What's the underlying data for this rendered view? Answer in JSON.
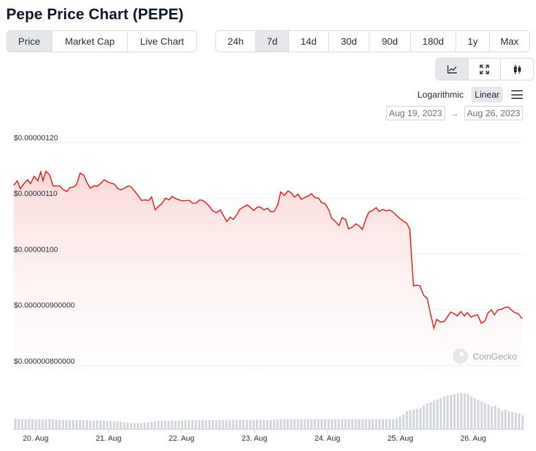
{
  "title": "Pepe Price Chart (PEPE)",
  "metric_tabs": [
    {
      "label": "Price",
      "active": true
    },
    {
      "label": "Market Cap",
      "active": false
    },
    {
      "label": "Live Chart",
      "active": false
    }
  ],
  "range_tabs": [
    {
      "label": "24h",
      "active": false
    },
    {
      "label": "7d",
      "active": true
    },
    {
      "label": "14d",
      "active": false
    },
    {
      "label": "30d",
      "active": false
    },
    {
      "label": "90d",
      "active": false
    },
    {
      "label": "180d",
      "active": false
    },
    {
      "label": "1y",
      "active": false
    },
    {
      "label": "Max",
      "active": false
    }
  ],
  "chart_type_icons": [
    {
      "name": "line-chart-icon",
      "active": true
    },
    {
      "name": "expand-icon",
      "active": false
    },
    {
      "name": "candlestick-icon",
      "active": false
    }
  ],
  "scale": {
    "log_label": "Logarithmic",
    "linear_label": "Linear",
    "selected": "Linear"
  },
  "dates": {
    "from": "Aug 19, 2023",
    "to": "Aug 26, 2023"
  },
  "watermark": "CoinGecko",
  "colors": {
    "line": "#dc2626",
    "fill_top": "#fbd5d5",
    "volume": "#d1d5db"
  },
  "chart_data": {
    "type": "line",
    "title": "",
    "xlabel": "",
    "ylabel": "",
    "y_ticks": [
      {
        "value": 1.2e-06,
        "label": "$0.00000120"
      },
      {
        "value": 1.1e-06,
        "label": "$0.00000110"
      },
      {
        "value": 1e-06,
        "label": "$0.00000100"
      },
      {
        "value": 9e-07,
        "label": "$0.000000900000"
      },
      {
        "value": 8e-07,
        "label": "$0.000000800000"
      }
    ],
    "ylim": [
      7.9e-07,
      1.2e-06
    ],
    "x_ticks": [
      {
        "t": 0.3,
        "label": "20. Aug"
      },
      {
        "t": 1.3,
        "label": "21. Aug"
      },
      {
        "t": 2.3,
        "label": "22. Aug"
      },
      {
        "t": 3.3,
        "label": "23. Aug"
      },
      {
        "t": 4.3,
        "label": "24. Aug"
      },
      {
        "t": 5.3,
        "label": "25. Aug"
      },
      {
        "t": 6.3,
        "label": "26. Aug"
      }
    ],
    "xlim": [
      0,
      7
    ],
    "grid": true,
    "series": [
      {
        "values": [
          [
            0.0,
            1.123
          ],
          [
            0.05,
            1.131
          ],
          [
            0.09,
            1.117
          ],
          [
            0.14,
            1.126
          ],
          [
            0.19,
            1.133
          ],
          [
            0.23,
            1.126
          ],
          [
            0.28,
            1.139
          ],
          [
            0.33,
            1.131
          ],
          [
            0.37,
            1.147
          ],
          [
            0.4,
            1.131
          ],
          [
            0.44,
            1.148
          ],
          [
            0.49,
            1.142
          ],
          [
            0.54,
            1.122
          ],
          [
            0.63,
            1.122
          ],
          [
            0.68,
            1.115
          ],
          [
            0.73,
            1.112
          ],
          [
            0.77,
            1.119
          ],
          [
            0.82,
            1.12
          ],
          [
            0.86,
            1.124
          ],
          [
            0.91,
            1.145
          ],
          [
            0.96,
            1.141
          ],
          [
            1.0,
            1.129
          ],
          [
            1.05,
            1.118
          ],
          [
            1.1,
            1.122
          ],
          [
            1.14,
            1.121
          ],
          [
            1.19,
            1.126
          ],
          [
            1.24,
            1.133
          ],
          [
            1.29,
            1.129
          ],
          [
            1.33,
            1.127
          ],
          [
            1.38,
            1.125
          ],
          [
            1.43,
            1.117
          ],
          [
            1.47,
            1.115
          ],
          [
            1.52,
            1.118
          ],
          [
            1.57,
            1.122
          ],
          [
            1.61,
            1.12
          ],
          [
            1.66,
            1.112
          ],
          [
            1.71,
            1.104
          ],
          [
            1.75,
            1.096
          ],
          [
            1.8,
            1.097
          ],
          [
            1.85,
            1.096
          ],
          [
            1.89,
            1.102
          ],
          [
            1.94,
            1.079
          ],
          [
            1.99,
            1.086
          ],
          [
            2.03,
            1.09
          ],
          [
            2.08,
            1.1
          ],
          [
            2.13,
            1.097
          ],
          [
            2.17,
            1.103
          ],
          [
            2.22,
            1.099
          ],
          [
            2.27,
            1.097
          ],
          [
            2.31,
            1.095
          ],
          [
            2.36,
            1.096
          ],
          [
            2.41,
            1.096
          ],
          [
            2.45,
            1.091
          ],
          [
            2.5,
            1.091
          ],
          [
            2.55,
            1.097
          ],
          [
            2.59,
            1.096
          ],
          [
            2.64,
            1.091
          ],
          [
            2.69,
            1.084
          ],
          [
            2.73,
            1.077
          ],
          [
            2.78,
            1.074
          ],
          [
            2.83,
            1.079
          ],
          [
            2.87,
            1.07
          ],
          [
            2.92,
            1.058
          ],
          [
            2.97,
            1.066
          ],
          [
            3.01,
            1.062
          ],
          [
            3.06,
            1.071
          ],
          [
            3.1,
            1.08
          ],
          [
            3.15,
            1.084
          ],
          [
            3.2,
            1.088
          ],
          [
            3.24,
            1.084
          ],
          [
            3.29,
            1.078
          ],
          [
            3.34,
            1.084
          ],
          [
            3.38,
            1.084
          ],
          [
            3.43,
            1.079
          ],
          [
            3.48,
            1.082
          ],
          [
            3.52,
            1.076
          ],
          [
            3.57,
            1.076
          ],
          [
            3.62,
            1.088
          ],
          [
            3.66,
            1.111
          ],
          [
            3.71,
            1.105
          ],
          [
            3.76,
            1.113
          ],
          [
            3.8,
            1.11
          ],
          [
            3.85,
            1.102
          ],
          [
            3.9,
            1.107
          ],
          [
            3.94,
            1.098
          ],
          [
            3.99,
            1.101
          ],
          [
            4.04,
            1.104
          ],
          [
            4.08,
            1.108
          ],
          [
            4.13,
            1.101
          ],
          [
            4.18,
            1.1
          ],
          [
            4.22,
            1.092
          ],
          [
            4.27,
            1.09
          ],
          [
            4.32,
            1.079
          ],
          [
            4.36,
            1.064
          ],
          [
            4.41,
            1.058
          ],
          [
            4.46,
            1.051
          ],
          [
            4.5,
            1.065
          ],
          [
            4.55,
            1.062
          ],
          [
            4.59,
            1.045
          ],
          [
            4.64,
            1.048
          ],
          [
            4.69,
            1.054
          ],
          [
            4.73,
            1.051
          ],
          [
            4.78,
            1.044
          ],
          [
            4.83,
            1.064
          ],
          [
            4.87,
            1.075
          ],
          [
            4.92,
            1.078
          ],
          [
            4.97,
            1.083
          ],
          [
            5.01,
            1.076
          ],
          [
            5.06,
            1.08
          ],
          [
            5.11,
            1.077
          ],
          [
            5.15,
            1.079
          ],
          [
            5.2,
            1.075
          ],
          [
            5.25,
            1.069
          ],
          [
            5.29,
            1.064
          ],
          [
            5.34,
            1.059
          ],
          [
            5.39,
            1.055
          ],
          [
            5.43,
            1.044
          ],
          [
            5.48,
            0.943
          ],
          [
            5.53,
            0.944
          ],
          [
            5.57,
            0.943
          ],
          [
            5.62,
            0.926
          ],
          [
            5.67,
            0.92
          ],
          [
            5.71,
            0.895
          ],
          [
            5.76,
            0.867
          ],
          [
            5.8,
            0.883
          ],
          [
            5.85,
            0.878
          ],
          [
            5.9,
            0.879
          ],
          [
            5.94,
            0.886
          ],
          [
            5.99,
            0.896
          ],
          [
            6.04,
            0.893
          ],
          [
            6.08,
            0.889
          ],
          [
            6.13,
            0.897
          ],
          [
            6.18,
            0.889
          ],
          [
            6.22,
            0.895
          ],
          [
            6.27,
            0.887
          ],
          [
            6.32,
            0.89
          ],
          [
            6.36,
            0.891
          ],
          [
            6.41,
            0.876
          ],
          [
            6.46,
            0.88
          ],
          [
            6.5,
            0.894
          ],
          [
            6.55,
            0.9
          ],
          [
            6.59,
            0.891
          ],
          [
            6.64,
            0.9
          ],
          [
            6.69,
            0.901
          ],
          [
            6.73,
            0.904
          ],
          [
            6.78,
            0.905
          ],
          [
            6.83,
            0.899
          ],
          [
            6.87,
            0.895
          ],
          [
            6.92,
            0.893
          ],
          [
            6.97,
            0.884
          ]
        ]
      }
    ],
    "volume": [
      0.26,
      0.25,
      0.24,
      0.24,
      0.25,
      0.24,
      0.23,
      0.24,
      0.24,
      0.23,
      0.24,
      0.24,
      0.23,
      0.22,
      0.22,
      0.22,
      0.23,
      0.22,
      0.22,
      0.23,
      0.22,
      0.22,
      0.21,
      0.21,
      0.22,
      0.21,
      0.21,
      0.2,
      0.2,
      0.19,
      0.19,
      0.18,
      0.17,
      0.16,
      0.15,
      0.14,
      0.14,
      0.15,
      0.16,
      0.17,
      0.18,
      0.19,
      0.2,
      0.21,
      0.21,
      0.2,
      0.21,
      0.2,
      0.21,
      0.21,
      0.22,
      0.21,
      0.22,
      0.21,
      0.22,
      0.22,
      0.21,
      0.22,
      0.22,
      0.21,
      0.22,
      0.22,
      0.21,
      0.22,
      0.23,
      0.23,
      0.23,
      0.23,
      0.22,
      0.22,
      0.22,
      0.23,
      0.23,
      0.23,
      0.22,
      0.22,
      0.23,
      0.23,
      0.24,
      0.24,
      0.24,
      0.24,
      0.24,
      0.24,
      0.24,
      0.24,
      0.25,
      0.24,
      0.24,
      0.24,
      0.24,
      0.24,
      0.24,
      0.24,
      0.24,
      0.24,
      0.24,
      0.24,
      0.24,
      0.24,
      0.24,
      0.24,
      0.24,
      0.24,
      0.24,
      0.24,
      0.24,
      0.24,
      0.24,
      0.24,
      0.24,
      0.24,
      0.26,
      0.3,
      0.36,
      0.44,
      0.46,
      0.48,
      0.5,
      0.52,
      0.58,
      0.63,
      0.66,
      0.7,
      0.73,
      0.76,
      0.8,
      0.82,
      0.85,
      0.86,
      0.88,
      0.89,
      0.88,
      0.86,
      0.8,
      0.76,
      0.72,
      0.68,
      0.64,
      0.6,
      0.56,
      0.58,
      0.52,
      0.46,
      0.48,
      0.44,
      0.42,
      0.4,
      0.38,
      0.34
    ]
  }
}
